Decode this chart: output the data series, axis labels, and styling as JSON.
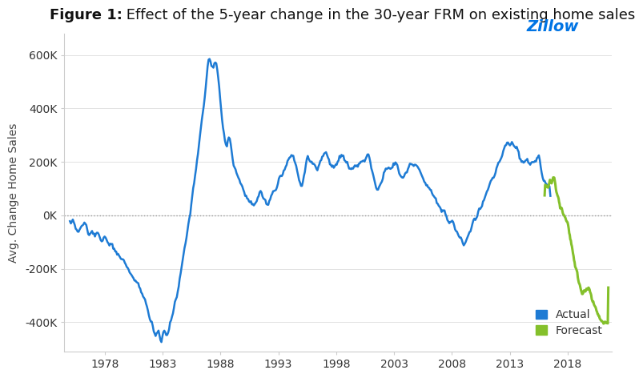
{
  "title_bold": "Figure 1:",
  "title_normal": " Effect of the 5-year change in the 30-year FRM on existing home sales",
  "ylabel": "Avg. Change Home Sales",
  "ytick_labels": [
    "600K",
    "400K",
    "200K",
    "0K",
    "-200K",
    "-400K"
  ],
  "ytick_values": [
    600000,
    400000,
    200000,
    0,
    -200000,
    -400000
  ],
  "xtick_labels": [
    "1978",
    "1983",
    "1988",
    "1993",
    "1998",
    "2003",
    "2008",
    "2013",
    "2018"
  ],
  "ylim": [
    -510000,
    680000
  ],
  "xlim_start": 1974.5,
  "xlim_end": 2021.8,
  "actual_color": "#1e7bd4",
  "forecast_color": "#84c02b",
  "background_color": "#ffffff",
  "grid_color": "#dddddd",
  "zero_line_color": "#999999",
  "zillow_blue": "#0074e4",
  "title_fontsize": 13,
  "axis_label_fontsize": 10,
  "tick_fontsize": 10,
  "legend_fontsize": 10,
  "linewidth_actual": 1.8,
  "linewidth_forecast": 2.2
}
